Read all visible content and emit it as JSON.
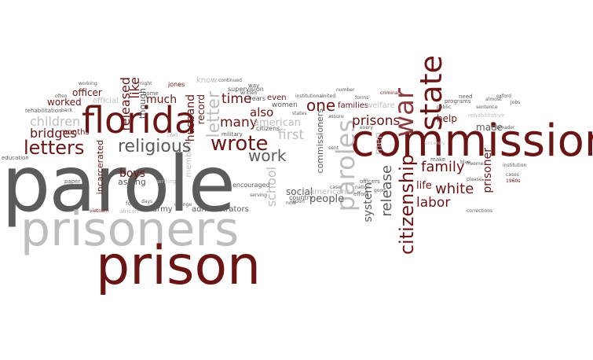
{
  "words": {
    "parole": "parole",
    "prisoners": "prisoners",
    "prison": "prison",
    "commission": "commission",
    "florida": "florida",
    "state": "state",
    "war": "war",
    "paroles": "paroles",
    "wrote": "wrote",
    "letters": "letters",
    "religious": "religious",
    "children": "children",
    "bridges": "bridges",
    "work": "work",
    "many": "many",
    "time": "time",
    "one": "one",
    "prisons": "prisons",
    "family": "family",
    "white": "white",
    "labor": "labor",
    "citizenship": "citizenship",
    "release": "release",
    "system": "system",
    "men": "men",
    "school": "school",
    "first": "first",
    "also": "also",
    "american": "american",
    "citizens": "citizens",
    "social": "social",
    "people": "people",
    "americans": "americans",
    "black": "black",
    "country": "country",
    "help": "help",
    "made": "made",
    "prisoner": "prisoner",
    "life": "life",
    "released": "released",
    "officer": "officer",
    "like": "like",
    "much": "much",
    "though": "though",
    "husband": "husband",
    "letter": "letter",
    "record": "record",
    "boys": "boys",
    "asking": "asking",
    "army": "army",
    "administrators": "administrators",
    "incarcerated": "incarcerated",
    "worked": "worked",
    "months": "months",
    "official": "official",
    "know": "know",
    "even": "even",
    "women": "women",
    "years": "years",
    "families": "families",
    "welfare": "welfare",
    "commissioners": "commissioners",
    "encouraged": "encouraged",
    "supervision": "supervision",
    "military": "military",
    "rehabilitation": "rehabilitation",
    "education": "education",
    "vietnam": "vietnam",
    "paper": "paper",
    "african": "african",
    "form": "form",
    "home": "home",
    "jones": "jones",
    "continued": "continued",
    "way": "way",
    "united": "united",
    "forms": "forms",
    "criminal": "criminal",
    "programs": "programs",
    "public": "public",
    "sentence": "sentence",
    "rehabilitative": "rehabilitative",
    "jobs": "jobs",
    "freemen": "freemen",
    "institution": "institution",
    "cases": "cases",
    "1960s": "1960s",
    "corrections": "corrections",
    "please": "please",
    "make": "make",
    "officers": "officers",
    "nation": "nation",
    "effort": "effort",
    "good": "good",
    "case": "case",
    "every": "every",
    "report": "report",
    "now": "now",
    "sent": "sent",
    "writing": "writing",
    "change": "change",
    "members": "members",
    "days": "days",
    "might": "might",
    "working": "working",
    "often": "often",
    "back": "back",
    "two": "two",
    "states": "states",
    "written": "written",
    "institutional": "institutional",
    "serving": "serving",
    "broader": "broader",
    "almost": "almost",
    "blue": "blue",
    "oxford": "oxford",
    "number": "number",
    "assure": "assure",
    "need": "need",
    "sincerely": "sincerely"
  }
}
